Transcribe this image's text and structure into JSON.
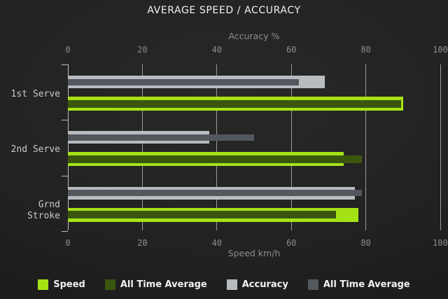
{
  "chart_data": {
    "type": "bar",
    "orientation": "horizontal",
    "title": "AVERAGE SPEED / ACCURACY",
    "categories": [
      "1st Serve",
      "2nd Serve",
      "Grnd Stroke"
    ],
    "series": [
      {
        "name": "Speed",
        "color": "#a5e214",
        "values": [
          90,
          74,
          78
        ]
      },
      {
        "name": "All Time Average",
        "color": "#3a560e",
        "values": [
          89.5,
          79,
          72
        ]
      },
      {
        "name": "Accuracy",
        "color": "#b9bcbf",
        "values": [
          69,
          38,
          77
        ]
      },
      {
        "name": "All Time Average",
        "color": "#53585f",
        "values": [
          62,
          50,
          79
        ]
      }
    ],
    "top_axis": {
      "label": "Accuracy %",
      "ticks": [
        0,
        20,
        40,
        60,
        80,
        100
      ],
      "range": [
        0,
        100
      ]
    },
    "bottom_axis": {
      "label": "Speed km/h",
      "ticks": [
        0,
        20,
        40,
        60,
        80,
        100
      ],
      "range": [
        0,
        100
      ]
    },
    "grid": true,
    "legend_position": "bottom"
  },
  "legend": [
    {
      "label": "Speed",
      "color": "#a5e214"
    },
    {
      "label": "All Time Average",
      "color": "#3a560e"
    },
    {
      "label": "Accuracy",
      "color": "#b9bcbf"
    },
    {
      "label": "All Time Average",
      "color": "#53585f"
    }
  ],
  "colors": {
    "background": "#222222",
    "title_text": "#f0f0f0",
    "axis_text": "#8d8d8d",
    "category_text": "#c9c9c9",
    "gridline": "#9b9b9b",
    "axis_line": "#bdbdbd",
    "legend_text": "#f1f1f1"
  }
}
